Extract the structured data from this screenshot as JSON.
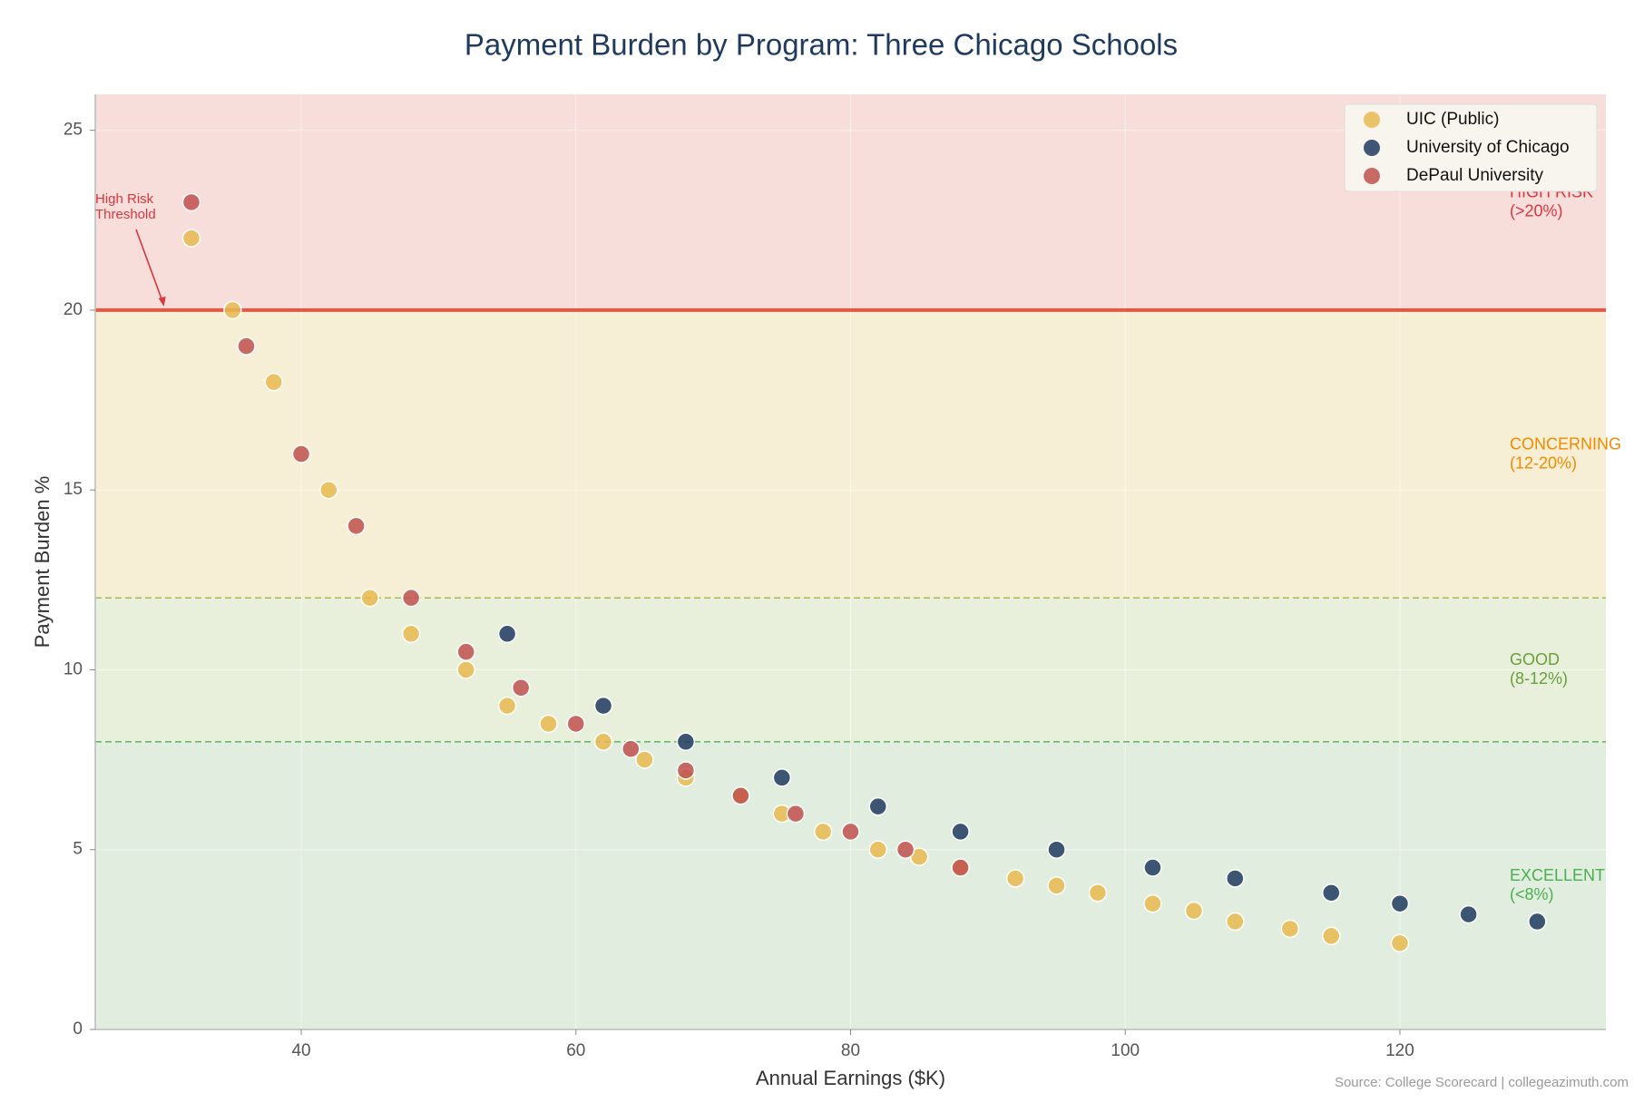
{
  "chart_data": {
    "type": "scatter",
    "title": "Payment Burden by Program: Three Chicago Schools",
    "xlabel": "Annual Earnings ($K)",
    "ylabel": "Payment Burden %",
    "xlim": [
      25,
      135
    ],
    "ylim": [
      0,
      26
    ],
    "xticks": [
      40,
      60,
      80,
      100,
      120
    ],
    "yticks": [
      0,
      5,
      10,
      15,
      20,
      25
    ],
    "grid": true,
    "legend": "upper right",
    "series": [
      {
        "name": "UIC (Public)",
        "color": "#e8b84f",
        "x": [
          32,
          35,
          38,
          42,
          45,
          48,
          52,
          55,
          58,
          62,
          65,
          68,
          72,
          75,
          78,
          82,
          85,
          88,
          92,
          95,
          98,
          102,
          105,
          108,
          112,
          115,
          120
        ],
        "values": [
          22,
          20,
          18,
          15,
          12,
          11,
          10,
          9,
          8.5,
          8,
          7.5,
          7,
          6.5,
          6,
          5.5,
          5,
          4.8,
          4.5,
          4.2,
          4,
          3.8,
          3.5,
          3.3,
          3,
          2.8,
          2.6,
          2.4
        ]
      },
      {
        "name": "University of Chicago",
        "color": "#1f3a5f",
        "x": [
          55,
          62,
          68,
          75,
          82,
          88,
          95,
          102,
          108,
          115,
          120,
          125,
          130
        ],
        "values": [
          11,
          9,
          8,
          7,
          6.2,
          5.5,
          5,
          4.5,
          4.2,
          3.8,
          3.5,
          3.2,
          3
        ]
      },
      {
        "name": "DePaul University",
        "color": "#c0504d",
        "x": [
          32,
          36,
          40,
          44,
          48,
          52,
          56,
          60,
          64,
          68,
          72,
          76,
          80,
          84,
          88
        ],
        "values": [
          23,
          19,
          16,
          14,
          12,
          10.5,
          9.5,
          8.5,
          7.8,
          7.2,
          6.5,
          6,
          5.5,
          5,
          4.5
        ]
      }
    ],
    "zones": [
      {
        "from": 0,
        "to": 8,
        "color": "#e0eddf",
        "text_color": "#4caf50",
        "label": [
          "EXCELLENT",
          "(<8%)"
        ]
      },
      {
        "from": 8,
        "to": 12,
        "color": "#e8f0dc",
        "text_color": "#6a9e3a",
        "label": [
          "GOOD",
          "(8-12%)"
        ]
      },
      {
        "from": 12,
        "to": 20,
        "color": "#f7efd5",
        "text_color": "#f08a00",
        "label": [
          "CONCERNING",
          "(12-20%)"
        ]
      },
      {
        "from": 20,
        "to": 26,
        "color": "#f7dedb",
        "text_color": "#d9363e",
        "label": [
          "HIGH RISK",
          "(>20%)"
        ]
      }
    ],
    "reference_lines": [
      {
        "value": 20,
        "color": "#e05a47",
        "style": "solid"
      },
      {
        "value": 12,
        "color": "#a8c060",
        "style": "dashed"
      },
      {
        "value": 8,
        "color": "#6ab86a",
        "style": "dashed"
      }
    ],
    "annotation": {
      "text": [
        "High Risk",
        "Threshold"
      ],
      "xy": [
        30,
        20
      ],
      "color": "#d9363e"
    },
    "source": "Source: College Scorecard | collegeazimuth.com"
  }
}
